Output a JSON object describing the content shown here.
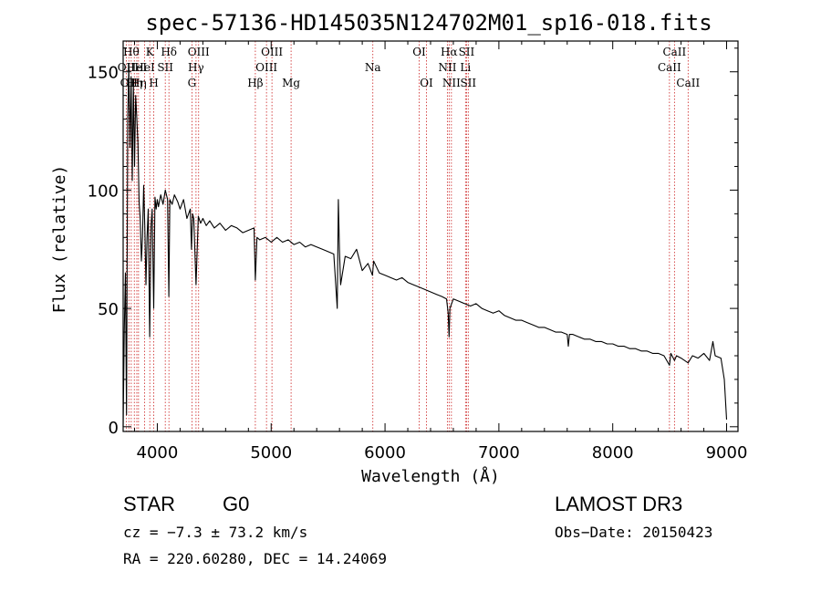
{
  "chart_data": {
    "type": "line",
    "title": "spec-57136-HD145035N124702M01_sp16-018.fits",
    "xlabel": "Wavelength (Å)",
    "ylabel": "Flux (relative)",
    "xlim": [
      3700,
      9100
    ],
    "ylim": [
      -2,
      163
    ],
    "xticks": [
      4000,
      5000,
      6000,
      7000,
      8000,
      9000
    ],
    "yticks": [
      0,
      50,
      100,
      150
    ],
    "series": [
      {
        "name": "spectrum",
        "x": [
          3700,
          3710,
          3720,
          3730,
          3740,
          3750,
          3760,
          3770,
          3780,
          3790,
          3800,
          3810,
          3820,
          3830,
          3840,
          3850,
          3860,
          3870,
          3880,
          3890,
          3900,
          3910,
          3920,
          3933,
          3945,
          3955,
          3968,
          3980,
          3990,
          4000,
          4010,
          4030,
          4050,
          4070,
          4090,
          4101,
          4110,
          4130,
          4150,
          4180,
          4200,
          4230,
          4260,
          4290,
          4300,
          4310,
          4320,
          4340,
          4360,
          4380,
          4400,
          4430,
          4460,
          4500,
          4550,
          4600,
          4650,
          4700,
          4750,
          4800,
          4850,
          4861,
          4875,
          4900,
          4950,
          5000,
          5050,
          5100,
          5150,
          5200,
          5250,
          5300,
          5350,
          5400,
          5450,
          5500,
          5550,
          5580,
          5590,
          5600,
          5610,
          5650,
          5700,
          5750,
          5800,
          5850,
          5890,
          5900,
          5950,
          6000,
          6050,
          6100,
          6150,
          6200,
          6250,
          6300,
          6350,
          6400,
          6450,
          6500,
          6540,
          6555,
          6563,
          6570,
          6600,
          6650,
          6700,
          6750,
          6800,
          6850,
          6900,
          6950,
          7000,
          7050,
          7100,
          7150,
          7200,
          7250,
          7300,
          7350,
          7400,
          7450,
          7500,
          7550,
          7600,
          7610,
          7620,
          7650,
          7700,
          7750,
          7800,
          7850,
          7900,
          7950,
          8000,
          8050,
          8100,
          8150,
          8200,
          8250,
          8300,
          8350,
          8400,
          8450,
          8498,
          8510,
          8542,
          8560,
          8600,
          8662,
          8700,
          8750,
          8800,
          8850,
          8880,
          8900,
          8950,
          8980,
          9000
        ],
        "y": [
          0,
          40,
          65,
          5,
          130,
          152,
          118,
          148,
          104,
          145,
          110,
          140,
          130,
          120,
          95,
          88,
          70,
          80,
          102,
          85,
          60,
          80,
          92,
          38,
          85,
          92,
          50,
          97,
          92,
          96,
          93,
          98,
          94,
          100,
          96,
          55,
          96,
          94,
          98,
          95,
          92,
          96,
          88,
          92,
          75,
          90,
          88,
          60,
          89,
          86,
          88,
          85,
          87,
          84,
          86,
          83,
          85,
          84,
          82,
          83,
          84,
          62,
          80,
          79,
          80,
          78,
          80,
          78,
          79,
          77,
          78,
          76,
          77,
          76,
          75,
          74,
          73,
          50,
          96,
          75,
          60,
          72,
          71,
          75,
          66,
          69,
          64,
          70,
          65,
          64,
          63,
          62,
          63,
          61,
          60,
          59,
          58,
          57,
          56,
          55,
          54,
          48,
          38,
          50,
          54,
          53,
          52,
          51,
          52,
          50,
          49,
          48,
          49,
          47,
          46,
          45,
          45,
          44,
          43,
          42,
          42,
          41,
          40,
          40,
          39,
          34,
          39,
          39,
          38,
          37,
          37,
          36,
          36,
          35,
          35,
          34,
          34,
          33,
          33,
          32,
          32,
          31,
          31,
          30,
          26,
          31,
          28,
          30,
          29,
          27,
          30,
          29,
          31,
          28,
          36,
          30,
          29,
          20,
          3
        ]
      }
    ],
    "reference_lines": [
      {
        "wavelength": 3727,
        "label": "OII",
        "row": 1
      },
      {
        "wavelength": 3750,
        "label": "OII",
        "row": 2
      },
      {
        "wavelength": 3771,
        "label": "Hθ",
        "row": 0
      },
      {
        "wavelength": 3798,
        "label": "Hη",
        "row": 2
      },
      {
        "wavelength": 3820,
        "label": "HeI",
        "row": 1
      },
      {
        "wavelength": 3835,
        "label": "Hη",
        "row": 2
      },
      {
        "wavelength": 3889,
        "label": "HeI",
        "row": 1
      },
      {
        "wavelength": 3934,
        "label": "K",
        "row": 0
      },
      {
        "wavelength": 3969,
        "label": "H",
        "row": 2
      },
      {
        "wavelength": 4070,
        "label": "SII",
        "row": 1
      },
      {
        "wavelength": 4102,
        "label": "Hδ",
        "row": 0
      },
      {
        "wavelength": 4304,
        "label": "G",
        "row": 2
      },
      {
        "wavelength": 4340,
        "label": "Hγ",
        "row": 1
      },
      {
        "wavelength": 4363,
        "label": "OIII",
        "row": 0
      },
      {
        "wavelength": 4861,
        "label": "Hβ",
        "row": 2
      },
      {
        "wavelength": 4959,
        "label": "OIII",
        "row": 1
      },
      {
        "wavelength": 5007,
        "label": "OIII",
        "row": 0
      },
      {
        "wavelength": 5175,
        "label": "Mg",
        "row": 2
      },
      {
        "wavelength": 5893,
        "label": "Na",
        "row": 1
      },
      {
        "wavelength": 6300,
        "label": "OI",
        "row": 0
      },
      {
        "wavelength": 6364,
        "label": "OI",
        "row": 2
      },
      {
        "wavelength": 6548,
        "label": "NII",
        "row": 1
      },
      {
        "wavelength": 6563,
        "label": "Hα",
        "row": 0
      },
      {
        "wavelength": 6583,
        "label": "NII",
        "row": 2
      },
      {
        "wavelength": 6707,
        "label": "Li",
        "row": 1
      },
      {
        "wavelength": 6716,
        "label": "SII",
        "row": 0
      },
      {
        "wavelength": 6731,
        "label": "SII",
        "row": 2
      },
      {
        "wavelength": 8498,
        "label": "CaII",
        "row": 1
      },
      {
        "wavelength": 8542,
        "label": "CaII",
        "row": 0
      },
      {
        "wavelength": 8662,
        "label": "CaII",
        "row": 2
      }
    ]
  },
  "info": {
    "class": "STAR",
    "subclass": "G0",
    "survey": "LAMOST DR3",
    "cz": "cz = −7.3 ± 73.2 km/s",
    "obs_date": "Obs−Date: 20150423",
    "coords": "RA = 220.60280, DEC =  14.24069"
  },
  "colors": {
    "spectrum": "#000000",
    "reference_line": "#cc2222",
    "axis": "#000000"
  }
}
